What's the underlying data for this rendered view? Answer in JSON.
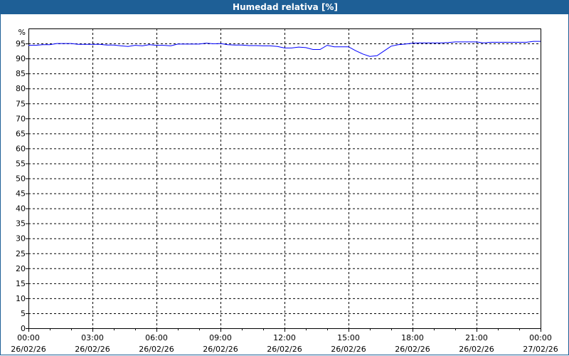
{
  "window": {
    "title": "Humedad relativa [%]"
  },
  "chart_data": {
    "type": "line",
    "title": "Humedad relativa [%]",
    "ylabel": "%",
    "ylim": [
      0,
      100
    ],
    "yticks": [
      0,
      5,
      10,
      15,
      20,
      25,
      30,
      35,
      40,
      45,
      50,
      55,
      60,
      65,
      70,
      75,
      80,
      85,
      90,
      95
    ],
    "xlim": [
      "26/02/26 00:00",
      "27/02/26 00:00"
    ],
    "xticks": [
      {
        "time": "00:00",
        "date": "26/02/26"
      },
      {
        "time": "03:00",
        "date": "26/02/26"
      },
      {
        "time": "06:00",
        "date": "26/02/26"
      },
      {
        "time": "09:00",
        "date": "26/02/26"
      },
      {
        "time": "12:00",
        "date": "26/02/26"
      },
      {
        "time": "15:00",
        "date": "26/02/26"
      },
      {
        "time": "18:00",
        "date": "26/02/26"
      },
      {
        "time": "21:00",
        "date": "26/02/26"
      },
      {
        "time": "00:00",
        "date": "27/02/26"
      }
    ],
    "grid": true,
    "line_color": "#0000ff",
    "series": [
      {
        "x": [
          "00:00",
          "00:20",
          "00:40",
          "01:00",
          "01:20",
          "01:40",
          "02:00",
          "02:20",
          "02:40",
          "03:00",
          "03:20",
          "03:40",
          "04:00",
          "04:20",
          "04:40",
          "05:00",
          "05:20",
          "05:40",
          "06:00",
          "06:20",
          "06:40",
          "07:00",
          "07:20",
          "07:40",
          "08:00",
          "08:20",
          "08:40",
          "09:00",
          "09:20",
          "09:40",
          "10:00",
          "10:20",
          "10:40",
          "11:00",
          "11:20",
          "11:40",
          "12:00",
          "12:20",
          "12:40",
          "13:00",
          "13:20",
          "13:40",
          "14:00",
          "14:20",
          "14:40",
          "15:00",
          "15:20",
          "15:40",
          "16:00",
          "16:20",
          "16:40",
          "17:00",
          "17:20",
          "17:40",
          "18:00",
          "18:20",
          "18:40",
          "19:00",
          "19:20",
          "19:40",
          "20:00",
          "20:20",
          "20:40",
          "21:00",
          "21:20",
          "21:40",
          "22:00",
          "22:20",
          "22:40",
          "23:00",
          "23:20",
          "23:40",
          "24:00"
        ],
        "values": [
          94.4,
          94.4,
          94.6,
          94.6,
          95.0,
          95.0,
          95.0,
          94.7,
          94.7,
          94.7,
          94.7,
          94.5,
          94.5,
          94.2,
          94.0,
          94.4,
          94.2,
          94.6,
          94.4,
          94.4,
          94.2,
          94.8,
          94.8,
          94.8,
          94.8,
          95.1,
          94.9,
          95.0,
          94.6,
          94.5,
          94.5,
          94.3,
          94.3,
          94.2,
          94.2,
          94.0,
          93.5,
          93.5,
          93.8,
          93.6,
          93.0,
          93.0,
          94.4,
          93.9,
          93.9,
          93.9,
          92.6,
          91.5,
          90.7,
          90.9,
          92.5,
          94.1,
          94.6,
          94.8,
          95.1,
          95.2,
          95.2,
          95.2,
          95.2,
          95.3,
          95.5,
          95.5,
          95.5,
          95.5,
          95.2,
          95.4,
          95.4,
          95.4,
          95.4,
          95.4,
          95.4,
          95.7,
          95.7
        ]
      }
    ]
  }
}
